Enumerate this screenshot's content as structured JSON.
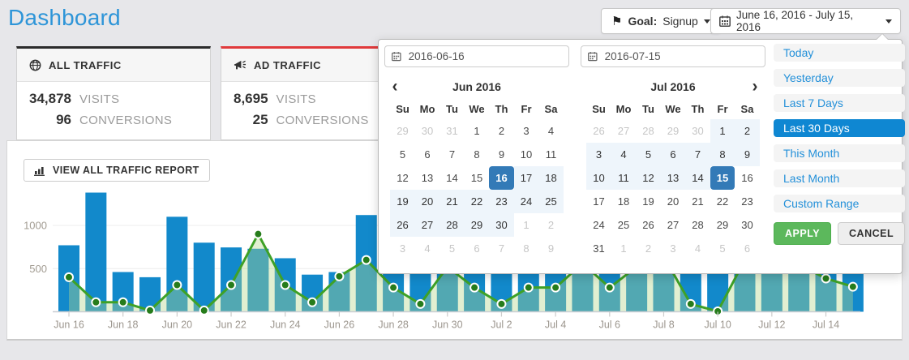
{
  "page": {
    "title": "Dashboard"
  },
  "header": {
    "goal": {
      "label": "Goal:",
      "value": "Signup"
    },
    "daterange_value": "June 16, 2016 - July 15, 2016"
  },
  "cards": [
    {
      "title": "ALL TRAFFIC",
      "icon": "globe-icon",
      "accent": "#2b2b2b",
      "visits": "34,878",
      "visits_label": "VISITS",
      "conversions": "96",
      "conversions_label": "CONVERSIONS"
    },
    {
      "title": "AD TRAFFIC",
      "icon": "megaphone-icon",
      "accent": "#e0393b",
      "visits": "8,695",
      "visits_label": "VISITS",
      "conversions": "25",
      "conversions_label": "CONVERSIONS"
    }
  ],
  "report_button": "VIEW ALL TRAFFIC REPORT",
  "daterange_picker": {
    "start_input": "2016-06-16",
    "end_input": "2016-07-15",
    "weekdays": [
      "Su",
      "Mo",
      "Tu",
      "We",
      "Th",
      "Fr",
      "Sa"
    ],
    "months": [
      {
        "title": "Jun 2016",
        "has_prev": true,
        "has_next": false,
        "cells": [
          {
            "d": 29,
            "s": "m"
          },
          {
            "d": 30,
            "s": "m"
          },
          {
            "d": 31,
            "s": "m"
          },
          {
            "d": 1,
            "s": "n"
          },
          {
            "d": 2,
            "s": "n"
          },
          {
            "d": 3,
            "s": "n"
          },
          {
            "d": 4,
            "s": "n"
          },
          {
            "d": 5,
            "s": "n"
          },
          {
            "d": 6,
            "s": "n"
          },
          {
            "d": 7,
            "s": "n"
          },
          {
            "d": 8,
            "s": "n"
          },
          {
            "d": 9,
            "s": "n"
          },
          {
            "d": 10,
            "s": "n"
          },
          {
            "d": 11,
            "s": "n"
          },
          {
            "d": 12,
            "s": "n"
          },
          {
            "d": 13,
            "s": "n"
          },
          {
            "d": 14,
            "s": "n"
          },
          {
            "d": 15,
            "s": "n"
          },
          {
            "d": 16,
            "s": "sel"
          },
          {
            "d": 17,
            "s": "r"
          },
          {
            "d": 18,
            "s": "r"
          },
          {
            "d": 19,
            "s": "r"
          },
          {
            "d": 20,
            "s": "r"
          },
          {
            "d": 21,
            "s": "r"
          },
          {
            "d": 22,
            "s": "r"
          },
          {
            "d": 23,
            "s": "r"
          },
          {
            "d": 24,
            "s": "r"
          },
          {
            "d": 25,
            "s": "r"
          },
          {
            "d": 26,
            "s": "r"
          },
          {
            "d": 27,
            "s": "r"
          },
          {
            "d": 28,
            "s": "r"
          },
          {
            "d": 29,
            "s": "r"
          },
          {
            "d": 30,
            "s": "r"
          },
          {
            "d": 1,
            "s": "m"
          },
          {
            "d": 2,
            "s": "m"
          },
          {
            "d": 3,
            "s": "m"
          },
          {
            "d": 4,
            "s": "m"
          },
          {
            "d": 5,
            "s": "m"
          },
          {
            "d": 6,
            "s": "m"
          },
          {
            "d": 7,
            "s": "m"
          },
          {
            "d": 8,
            "s": "m"
          },
          {
            "d": 9,
            "s": "m"
          }
        ]
      },
      {
        "title": "Jul 2016",
        "has_prev": false,
        "has_next": true,
        "cells": [
          {
            "d": 26,
            "s": "m"
          },
          {
            "d": 27,
            "s": "m"
          },
          {
            "d": 28,
            "s": "m"
          },
          {
            "d": 29,
            "s": "m"
          },
          {
            "d": 30,
            "s": "m"
          },
          {
            "d": 1,
            "s": "r"
          },
          {
            "d": 2,
            "s": "r"
          },
          {
            "d": 3,
            "s": "r"
          },
          {
            "d": 4,
            "s": "r"
          },
          {
            "d": 5,
            "s": "r"
          },
          {
            "d": 6,
            "s": "r"
          },
          {
            "d": 7,
            "s": "r"
          },
          {
            "d": 8,
            "s": "r"
          },
          {
            "d": 9,
            "s": "r"
          },
          {
            "d": 10,
            "s": "r"
          },
          {
            "d": 11,
            "s": "r"
          },
          {
            "d": 12,
            "s": "r"
          },
          {
            "d": 13,
            "s": "r"
          },
          {
            "d": 14,
            "s": "r"
          },
          {
            "d": 15,
            "s": "sel"
          },
          {
            "d": 16,
            "s": "n"
          },
          {
            "d": 17,
            "s": "n"
          },
          {
            "d": 18,
            "s": "n"
          },
          {
            "d": 19,
            "s": "n"
          },
          {
            "d": 20,
            "s": "n"
          },
          {
            "d": 21,
            "s": "n"
          },
          {
            "d": 22,
            "s": "n"
          },
          {
            "d": 23,
            "s": "n"
          },
          {
            "d": 24,
            "s": "n"
          },
          {
            "d": 25,
            "s": "n"
          },
          {
            "d": 26,
            "s": "n"
          },
          {
            "d": 27,
            "s": "n"
          },
          {
            "d": 28,
            "s": "n"
          },
          {
            "d": 29,
            "s": "n"
          },
          {
            "d": 30,
            "s": "n"
          },
          {
            "d": 31,
            "s": "n"
          },
          {
            "d": 1,
            "s": "m"
          },
          {
            "d": 2,
            "s": "m"
          },
          {
            "d": 3,
            "s": "m"
          },
          {
            "d": 4,
            "s": "m"
          },
          {
            "d": 5,
            "s": "m"
          },
          {
            "d": 6,
            "s": "m"
          }
        ]
      }
    ],
    "ranges": [
      {
        "label": "Today",
        "active": false
      },
      {
        "label": "Yesterday",
        "active": false
      },
      {
        "label": "Last 7 Days",
        "active": false
      },
      {
        "label": "Last 30 Days",
        "active": true
      },
      {
        "label": "This Month",
        "active": false
      },
      {
        "label": "Last Month",
        "active": false
      },
      {
        "label": "Custom Range",
        "active": false
      }
    ],
    "apply_label": "APPLY",
    "cancel_label": "CANCEL"
  },
  "chart_data": {
    "type": "bar",
    "categories": [
      "Jun 16",
      "Jun 17",
      "Jun 18",
      "Jun 19",
      "Jun 20",
      "Jun 21",
      "Jun 22",
      "Jun 23",
      "Jun 24",
      "Jun 25",
      "Jun 26",
      "Jun 27",
      "Jun 28",
      "Jun 29",
      "Jun 30",
      "Jul 1",
      "Jul 2",
      "Jul 3",
      "Jul 4",
      "Jul 5",
      "Jul 6",
      "Jul 7",
      "Jul 8",
      "Jul 9",
      "Jul 10",
      "Jul 11",
      "Jul 12",
      "Jul 13",
      "Jul 14",
      "Jul 15"
    ],
    "x_tick_every": 2,
    "yticks": [
      500,
      1000
    ],
    "ylim": [
      0,
      1450
    ],
    "grid": true,
    "legend": false,
    "title": "",
    "xlabel": "",
    "ylabel": "",
    "series": [
      {
        "name": "blue-bars",
        "type": "bar",
        "color": "#1289cb",
        "values": [
          770,
          1380,
          460,
          400,
          1100,
          800,
          745,
          730,
          620,
          430,
          460,
          1120,
          900,
          700,
          850,
          950,
          600,
          800,
          700,
          900,
          850,
          750,
          800,
          700,
          650,
          900,
          800,
          850,
          1050,
          900
        ]
      },
      {
        "name": "green-line",
        "type": "line",
        "color": "#3ea127",
        "marker_color": "#267c1b",
        "area_color": "rgba(180,215,140,0.4)",
        "values": [
          400,
          110,
          110,
          15,
          310,
          15,
          310,
          900,
          310,
          110,
          410,
          600,
          280,
          90,
          520,
          280,
          90,
          280,
          280,
          560,
          280,
          520,
          640,
          90,
          5,
          600,
          700,
          550,
          385,
          290
        ]
      }
    ]
  },
  "colors": {
    "page_bg": "#e7e7ea",
    "title_blue": "#2e95d8",
    "bar_blue": "#1289cb",
    "line_green": "#3ea127",
    "selected_day_blue": "#337ab7",
    "range_active_blue": "#0f87d2",
    "apply_green": "#5cb85c",
    "all_traffic_accent": "#2b2b2b",
    "ad_traffic_accent": "#e0393b",
    "in_range_bg": "#eef5fb"
  }
}
